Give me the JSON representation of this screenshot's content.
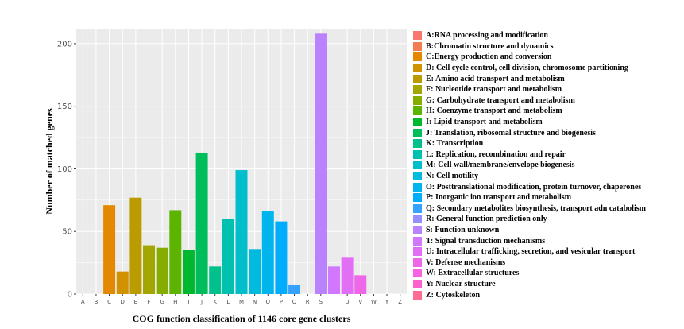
{
  "chart_data": {
    "type": "bar",
    "title": "",
    "xlabel": "COG function classification of  1146 core gene clusters",
    "ylabel": "Number of matched genes",
    "ylim": [
      0,
      212
    ],
    "yticks": [
      0,
      50,
      100,
      150,
      200
    ],
    "ytick_labels": [
      "0",
      "50",
      "100",
      "150",
      "200"
    ],
    "categories": [
      "A",
      "B",
      "C",
      "D",
      "E",
      "F",
      "G",
      "H",
      "I",
      "J",
      "K",
      "L",
      "M",
      "N",
      "O",
      "P",
      "Q",
      "R",
      "S",
      "T",
      "U",
      "V",
      "W",
      "Y",
      "Z"
    ],
    "values": [
      0,
      0,
      71,
      18,
      77,
      39,
      37,
      67,
      35,
      113,
      22,
      60,
      99,
      36,
      66,
      58,
      7,
      0,
      208,
      22,
      29,
      15,
      0,
      0,
      0
    ],
    "colors": [
      "#F8766D",
      "#F27D51",
      "#E38900",
      "#D09200",
      "#BB9C00",
      "#A3A500",
      "#85AD00",
      "#5CB300",
      "#00B82D",
      "#00BD5C",
      "#00C08B",
      "#00C0AF",
      "#00BECC",
      "#00BBDE",
      "#00B5EE",
      "#00ACFC",
      "#35A2FF",
      "#9590FF",
      "#B983FF",
      "#D277FF",
      "#E36EF6",
      "#EE67E8",
      "#F763E0",
      "#FF61CC",
      "#FF6C91"
    ],
    "grid": true,
    "legend": {
      "position": "right",
      "entries": [
        "A:RNA processing and modification",
        "B:Chromatin structure and dynamics",
        "C:Energy production and conversion",
        "D: Cell cycle control, cell division, chromosome partitioning",
        "E: Amino acid transport and metabolism",
        "F: Nucleotide transport and metabolism",
        "G: Carbohydrate transport and metabolism",
        "H: Coenzyme transport and metabolism",
        "I: Lipid transport and metabolism",
        "J: Translation, ribosomal structure and biogenesis",
        "K: Transcription",
        "L: Replication, recombination and repair",
        "M: Cell wall/membrane/envelope biogenesis",
        "N: Cell motility",
        "O: Posttranslational modification, protein turnover, chaperones",
        "P: Inorganic ion transport and metabolism",
        "Q: Secondary metabolites biosynthesis, transport adn catabolism",
        "R: General function prediction only",
        "S: Function unknown",
        "T: Signal transduction mechanisms",
        "U: Intracellular trafficking, secretion, and vesicular transport",
        "V: Defense mechanisms",
        "W: Extracellular structures",
        "Y: Nuclear structure",
        "Z: Cytoskeleton"
      ]
    }
  }
}
